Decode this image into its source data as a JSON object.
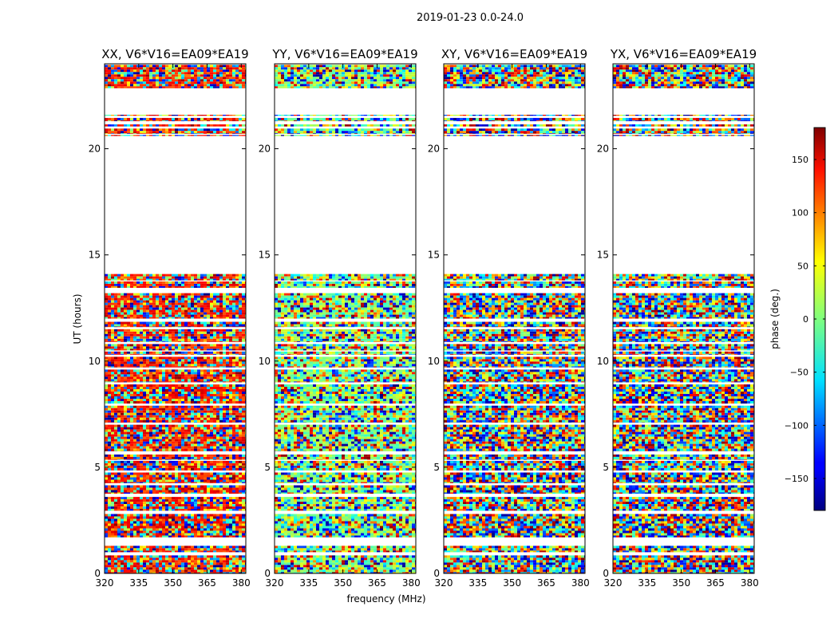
{
  "chart_data": {
    "type": "heatmap",
    "title": "2019-01-23 0.0-24.0",
    "xlabel": "frequency (MHz)",
    "ylabel": "UT (hours)",
    "xlim": [
      320,
      382
    ],
    "ylim": [
      0,
      24
    ],
    "xticks": [
      320,
      335,
      350,
      365,
      380
    ],
    "yticks": [
      0,
      5,
      10,
      15,
      20
    ],
    "panels": [
      {
        "title": "XX, V6*V16=EA09*EA19"
      },
      {
        "title": "YY, V6*V16=EA09*EA19"
      },
      {
        "title": "XY, V6*V16=EA09*EA19"
      },
      {
        "title": "YX, V6*V16=EA09*EA19"
      }
    ],
    "data_bands_hours": [
      [
        0.0,
        0.85
      ],
      [
        1.0,
        1.3
      ],
      [
        1.7,
        2.8
      ],
      [
        2.95,
        3.6
      ],
      [
        3.75,
        4.15
      ],
      [
        4.25,
        4.75
      ],
      [
        4.85,
        5.3
      ],
      [
        5.35,
        5.6
      ],
      [
        5.75,
        7.0
      ],
      [
        7.1,
        7.9
      ],
      [
        8.0,
        8.9
      ],
      [
        9.0,
        9.6
      ],
      [
        9.7,
        10.2
      ],
      [
        10.3,
        10.45
      ],
      [
        10.5,
        10.8
      ],
      [
        10.9,
        11.5
      ],
      [
        11.6,
        11.85
      ],
      [
        12.0,
        13.2
      ],
      [
        13.45,
        13.75
      ],
      [
        13.8,
        14.1
      ],
      [
        20.6,
        20.65
      ],
      [
        20.7,
        20.95
      ],
      [
        21.05,
        21.15
      ],
      [
        21.3,
        21.45
      ],
      [
        21.55,
        21.6
      ],
      [
        22.85,
        23.95
      ]
    ],
    "colorbar": {
      "label": "phase (deg.)",
      "range": [
        -180,
        180
      ],
      "ticks": [
        -150,
        -100,
        -50,
        0,
        50,
        100,
        150
      ],
      "tick_labels": [
        "−150",
        "−100",
        "−50",
        "0",
        "50",
        "100",
        "150"
      ],
      "colormap": "jet",
      "colors": [
        "#00007f",
        "#0000ff",
        "#00ffff",
        "#7fff7f",
        "#ffff00",
        "#ff0000",
        "#7f0000"
      ]
    }
  }
}
